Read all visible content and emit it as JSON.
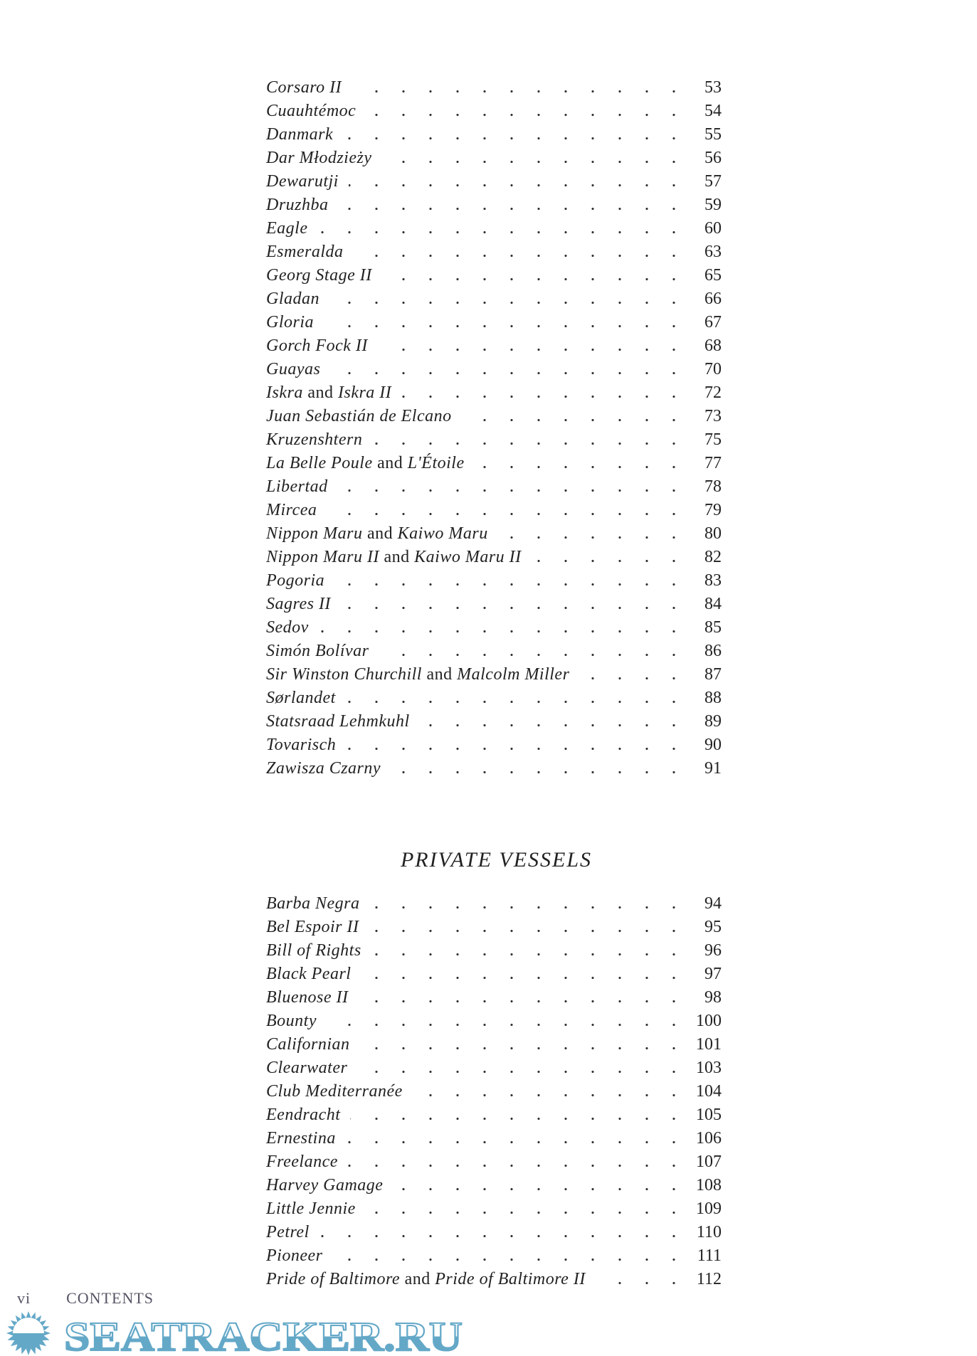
{
  "section1": [
    {
      "parts": [
        {
          "t": "Corsaro II",
          "i": true
        }
      ],
      "page": "53"
    },
    {
      "parts": [
        {
          "t": "Cuauhtémoc",
          "i": true
        }
      ],
      "page": "54"
    },
    {
      "parts": [
        {
          "t": "Danmark",
          "i": true
        }
      ],
      "page": "55"
    },
    {
      "parts": [
        {
          "t": "Dar Młodzieży",
          "i": true
        }
      ],
      "page": "56"
    },
    {
      "parts": [
        {
          "t": "Dewarutji",
          "i": true
        }
      ],
      "page": "57"
    },
    {
      "parts": [
        {
          "t": "Druzhba",
          "i": true
        }
      ],
      "page": "59"
    },
    {
      "parts": [
        {
          "t": "Eagle",
          "i": true
        }
      ],
      "page": "60"
    },
    {
      "parts": [
        {
          "t": "Esmeralda",
          "i": true
        }
      ],
      "page": "63"
    },
    {
      "parts": [
        {
          "t": "Georg Stage II",
          "i": true
        }
      ],
      "page": "65"
    },
    {
      "parts": [
        {
          "t": "Gladan",
          "i": true
        }
      ],
      "page": "66"
    },
    {
      "parts": [
        {
          "t": "Gloria",
          "i": true
        }
      ],
      "page": "67"
    },
    {
      "parts": [
        {
          "t": "Gorch Fock II",
          "i": true
        }
      ],
      "page": "68"
    },
    {
      "parts": [
        {
          "t": "Guayas",
          "i": true
        }
      ],
      "page": "70"
    },
    {
      "parts": [
        {
          "t": "Iskra",
          "i": true
        },
        {
          "t": " and ",
          "i": false
        },
        {
          "t": "Iskra II",
          "i": true
        }
      ],
      "page": "72"
    },
    {
      "parts": [
        {
          "t": "Juan Sebastián de Elcano",
          "i": true
        }
      ],
      "page": "73"
    },
    {
      "parts": [
        {
          "t": "Kruzenshtern",
          "i": true
        }
      ],
      "page": "75"
    },
    {
      "parts": [
        {
          "t": "La Belle Poule",
          "i": true
        },
        {
          "t": " and ",
          "i": false
        },
        {
          "t": "L'Étoile",
          "i": true
        }
      ],
      "page": "77"
    },
    {
      "parts": [
        {
          "t": "Libertad",
          "i": true
        }
      ],
      "page": "78"
    },
    {
      "parts": [
        {
          "t": "Mircea",
          "i": true
        }
      ],
      "page": "79"
    },
    {
      "parts": [
        {
          "t": "Nippon Maru",
          "i": true
        },
        {
          "t": " and ",
          "i": false
        },
        {
          "t": "Kaiwo Maru",
          "i": true
        }
      ],
      "page": "80"
    },
    {
      "parts": [
        {
          "t": "Nippon Maru II",
          "i": true
        },
        {
          "t": " and ",
          "i": false
        },
        {
          "t": "Kaiwo Maru II",
          "i": true
        }
      ],
      "page": "82"
    },
    {
      "parts": [
        {
          "t": "Pogoria",
          "i": true
        }
      ],
      "page": "83"
    },
    {
      "parts": [
        {
          "t": "Sagres II",
          "i": true
        }
      ],
      "page": "84"
    },
    {
      "parts": [
        {
          "t": "Sedov",
          "i": true
        }
      ],
      "page": "85"
    },
    {
      "parts": [
        {
          "t": "Simón Bolívar",
          "i": true
        }
      ],
      "page": "86"
    },
    {
      "parts": [
        {
          "t": "Sir Winston Churchill",
          "i": true
        },
        {
          "t": " and ",
          "i": false
        },
        {
          "t": "Malcolm Miller",
          "i": true
        }
      ],
      "page": "87"
    },
    {
      "parts": [
        {
          "t": "Sørlandet",
          "i": true
        }
      ],
      "page": "88"
    },
    {
      "parts": [
        {
          "t": "Statsraad Lehmkuhl",
          "i": true
        }
      ],
      "page": "89"
    },
    {
      "parts": [
        {
          "t": "Tovarisch",
          "i": true
        }
      ],
      "page": "90"
    },
    {
      "parts": [
        {
          "t": "Zawisza Czarny",
          "i": true
        }
      ],
      "page": "91"
    }
  ],
  "heading": "PRIVATE VESSELS",
  "section2": [
    {
      "parts": [
        {
          "t": "Barba Negra",
          "i": true
        }
      ],
      "page": "94"
    },
    {
      "parts": [
        {
          "t": "Bel Espoir II",
          "i": true
        }
      ],
      "page": "95"
    },
    {
      "parts": [
        {
          "t": "Bill of Rights",
          "i": true
        }
      ],
      "page": "96"
    },
    {
      "parts": [
        {
          "t": "Black Pearl",
          "i": true
        }
      ],
      "page": "97"
    },
    {
      "parts": [
        {
          "t": "Bluenose II",
          "i": true
        }
      ],
      "page": "98"
    },
    {
      "parts": [
        {
          "t": "Bounty",
          "i": true
        }
      ],
      "page": "100"
    },
    {
      "parts": [
        {
          "t": "Californian",
          "i": true
        }
      ],
      "page": "101"
    },
    {
      "parts": [
        {
          "t": "Clearwater",
          "i": true
        }
      ],
      "page": "103"
    },
    {
      "parts": [
        {
          "t": "Club Mediterranée",
          "i": true
        }
      ],
      "page": "104"
    },
    {
      "parts": [
        {
          "t": "Eendracht",
          "i": true
        }
      ],
      "page": "105"
    },
    {
      "parts": [
        {
          "t": "Ernestina",
          "i": true
        }
      ],
      "page": "106"
    },
    {
      "parts": [
        {
          "t": "Freelance",
          "i": true
        }
      ],
      "page": "107"
    },
    {
      "parts": [
        {
          "t": "Harvey Gamage",
          "i": true
        }
      ],
      "page": "108"
    },
    {
      "parts": [
        {
          "t": "Little Jennie",
          "i": true
        }
      ],
      "page": "109"
    },
    {
      "parts": [
        {
          "t": "Petrel",
          "i": true
        }
      ],
      "page": "110"
    },
    {
      "parts": [
        {
          "t": "Pioneer",
          "i": true
        }
      ],
      "page": "111"
    },
    {
      "parts": [
        {
          "t": "Pride of Baltimore",
          "i": true
        },
        {
          "t": " and ",
          "i": false
        },
        {
          "t": "Pride of Baltimore II",
          "i": true
        }
      ],
      "page": "112"
    }
  ],
  "footer": {
    "page_number": "vi",
    "label": "CONTENTS"
  },
  "watermark": {
    "text": "SEATRACKER.RU",
    "color": "#64a8c8"
  }
}
